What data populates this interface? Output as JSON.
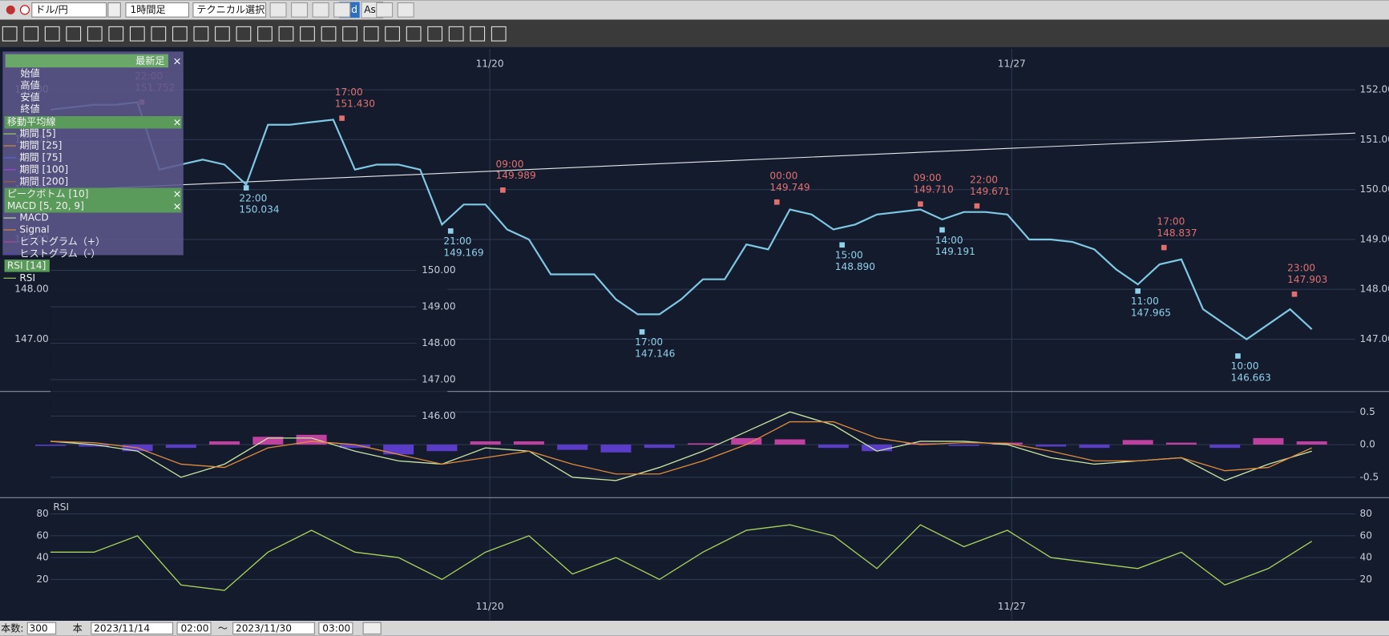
{
  "toolbar": {
    "pair": "ドル/円",
    "timeframe": "1時間足",
    "technical": "テクニカル選択",
    "bid": "Bid",
    "ask": "Ask"
  },
  "legend_panel": {
    "header": "最新足",
    "fields": [
      "始値",
      "高値",
      "安値",
      "終値"
    ],
    "ma_title": "移動平均線",
    "ma_periods": [
      {
        "name": "期間 [5]",
        "color": "#a6d45a"
      },
      {
        "name": "期間 [25]",
        "color": "#e08a3c"
      },
      {
        "name": "期間 [75]",
        "color": "#5a6ae0"
      },
      {
        "name": "期間 [100]",
        "color": "#b040e0"
      },
      {
        "name": "期間 [200]",
        "color": "#a0603a"
      }
    ],
    "peak": "ピークボトム [10]",
    "macd": "MACD [5, 20, 9]",
    "rsi": "RSI [14]"
  },
  "overlay": {
    "ylim": [
      145.8,
      150.37
    ],
    "yticks": [
      {
        "value": 150,
        "label": "150.00"
      },
      {
        "value": 149,
        "label": "149.00"
      },
      {
        "value": 148,
        "label": "148.00"
      },
      {
        "value": 147,
        "label": "147.00"
      },
      {
        "value": 146,
        "label": "146.00"
      }
    ]
  },
  "chart_data": [
    {
      "type": "line",
      "color": "#7ec8e3",
      "xlim": [
        0,
        300
      ],
      "ylim": [
        145.97,
        152.82
      ],
      "mirror_yticks": true,
      "xtick_labels": "top",
      "yticks": [
        {
          "value": 147,
          "label": "147.00"
        },
        {
          "value": 148,
          "label": "148.00"
        },
        {
          "value": 149,
          "label": "149.00"
        },
        {
          "value": 150,
          "label": "150.00"
        },
        {
          "value": 151,
          "label": "151.00"
        },
        {
          "value": 152,
          "label": "152.00"
        }
      ],
      "xticks": [
        {
          "value": 101,
          "label": "11/20"
        },
        {
          "value": 221,
          "label": "11/27"
        }
      ],
      "x": [
        0,
        5,
        10,
        15,
        20,
        25,
        30,
        35,
        40,
        45,
        50,
        55,
        60,
        65,
        70,
        75,
        80,
        85,
        90,
        95,
        100,
        105,
        110,
        115,
        120,
        125,
        130,
        135,
        140,
        145,
        150,
        155,
        160,
        165,
        170,
        175,
        180,
        185,
        190,
        195,
        200,
        205,
        210,
        215,
        220,
        225,
        230,
        235,
        240,
        245,
        250,
        255,
        260,
        265,
        270,
        275,
        280,
        285,
        290
      ],
      "values": [
        151.6,
        151.65,
        151.7,
        151.7,
        151.75,
        150.4,
        150.5,
        150.6,
        150.5,
        150.1,
        151.3,
        151.3,
        151.35,
        151.4,
        150.4,
        150.5,
        150.5,
        150.4,
        149.3,
        149.7,
        149.7,
        149.2,
        149.0,
        148.3,
        148.3,
        148.3,
        147.8,
        147.5,
        147.5,
        147.8,
        148.2,
        148.2,
        148.9,
        148.8,
        149.6,
        149.5,
        149.2,
        149.3,
        149.5,
        149.55,
        149.6,
        149.4,
        149.55,
        149.55,
        149.5,
        149.0,
        149.0,
        148.95,
        148.8,
        148.4,
        148.1,
        148.5,
        148.6,
        147.6,
        147.3,
        147.0,
        147.3,
        147.6,
        147.2
      ],
      "trendline": {
        "color": "#e8e8e8",
        "x": [
          0,
          300
        ],
        "values": [
          149.98,
          151.13
        ]
      },
      "annotations": [
        {
          "x": 21,
          "time": "22:00",
          "value": 151.752,
          "kind": "high"
        },
        {
          "x": 67,
          "time": "17:00",
          "value": 151.43,
          "label": "151.430",
          "kind": "high"
        },
        {
          "x": 45,
          "time": "22:00",
          "value": 150.034,
          "kind": "low"
        },
        {
          "x": 104,
          "time": "09:00",
          "value": 149.989,
          "kind": "high"
        },
        {
          "x": 92,
          "time": "21:00",
          "value": 149.169,
          "kind": "low"
        },
        {
          "x": 167,
          "time": "00:00",
          "value": 149.749,
          "kind": "high"
        },
        {
          "x": 136,
          "time": "17:00",
          "value": 147.146,
          "kind": "low"
        },
        {
          "x": 200,
          "time": "09:00",
          "value": 149.71,
          "label": "149.710",
          "kind": "high"
        },
        {
          "x": 182,
          "time": "15:00",
          "value": 148.89,
          "label": "148.890",
          "kind": "low"
        },
        {
          "x": 213,
          "time": "22:00",
          "value": 149.671,
          "kind": "high"
        },
        {
          "x": 205,
          "time": "14:00",
          "value": 149.191,
          "kind": "low"
        },
        {
          "x": 256,
          "time": "17:00",
          "value": 148.837,
          "kind": "high"
        },
        {
          "x": 250,
          "time": "11:00",
          "value": 147.965,
          "kind": "low"
        },
        {
          "x": 286,
          "time": "23:00",
          "value": 147.903,
          "kind": "high"
        },
        {
          "x": 273,
          "time": "10:00",
          "value": 146.663,
          "kind": "low"
        }
      ]
    },
    {
      "type": "combo",
      "xlim": [
        0,
        300
      ],
      "ylim": [
        -0.8,
        0.8
      ],
      "yticks": [
        0.5,
        {
          "value": 0,
          "label": "0.0"
        },
        -0.5
      ],
      "x": [
        0,
        10,
        20,
        30,
        40,
        50,
        60,
        70,
        80,
        90,
        100,
        110,
        120,
        130,
        140,
        150,
        160,
        170,
        180,
        190,
        200,
        210,
        220,
        230,
        240,
        250,
        260,
        270,
        280,
        290
      ],
      "series": [
        {
          "name": "MACD",
          "kind": "line",
          "color": "#c8e6a0",
          "values": [
            0.05,
            0.0,
            -0.1,
            -0.5,
            -0.3,
            0.1,
            0.1,
            -0.1,
            -0.25,
            -0.3,
            -0.05,
            -0.1,
            -0.5,
            -0.55,
            -0.35,
            -0.1,
            0.2,
            0.5,
            0.3,
            -0.1,
            0.05,
            0.05,
            0.0,
            -0.2,
            -0.3,
            -0.25,
            -0.2,
            -0.55,
            -0.3,
            -0.1
          ]
        },
        {
          "name": "Signal",
          "kind": "line",
          "color": "#e08a3c",
          "values": [
            0.05,
            0.03,
            -0.05,
            -0.3,
            -0.35,
            -0.05,
            0.05,
            0.0,
            -0.15,
            -0.3,
            -0.2,
            -0.1,
            -0.3,
            -0.45,
            -0.45,
            -0.25,
            0.0,
            0.35,
            0.35,
            0.1,
            0.0,
            0.03,
            0.02,
            -0.1,
            -0.25,
            -0.25,
            -0.2,
            -0.4,
            -0.35,
            -0.05
          ]
        },
        {
          "name": "ヒストグラム（+）",
          "kind": "bar",
          "color": "#c040a0",
          "values": [
            null,
            null,
            null,
            null,
            0.05,
            0.12,
            0.15,
            null,
            null,
            null,
            0.05,
            0.05,
            null,
            null,
            null,
            0.02,
            0.1,
            0.08,
            null,
            null,
            0.02,
            null,
            0.03,
            null,
            null,
            0.07,
            0.03,
            null,
            0.1,
            0.05
          ]
        },
        {
          "name": "ヒストグラム（-）",
          "kind": "bar",
          "color": "#5a3cc8",
          "values": [
            -0.02,
            -0.03,
            -0.1,
            -0.05,
            null,
            null,
            null,
            -0.05,
            -0.15,
            -0.1,
            null,
            null,
            -0.08,
            -0.12,
            -0.05,
            null,
            null,
            null,
            -0.05,
            -0.1,
            null,
            -0.02,
            null,
            -0.03,
            -0.05,
            null,
            null,
            -0.05,
            null,
            null
          ]
        }
      ]
    },
    {
      "type": "line",
      "title": "RSI",
      "xlim": [
        0,
        300
      ],
      "ylim": [
        -17,
        94
      ],
      "mirror_yticks": true,
      "xtick_labels": "bottom",
      "yticks": [
        20,
        40,
        60,
        80
      ],
      "xticks": [
        {
          "value": 101,
          "label": "11/20"
        },
        {
          "value": 221,
          "label": "11/27"
        }
      ],
      "x": [
        0,
        10,
        20,
        30,
        40,
        50,
        60,
        70,
        80,
        90,
        100,
        110,
        120,
        130,
        140,
        150,
        160,
        170,
        180,
        190,
        200,
        210,
        220,
        230,
        240,
        250,
        260,
        270,
        280,
        290
      ],
      "series": [
        {
          "name": "RSI",
          "color": "#a6d45a",
          "values": [
            45,
            45,
            60,
            15,
            10,
            45,
            65,
            45,
            40,
            20,
            45,
            60,
            25,
            40,
            20,
            45,
            65,
            70,
            60,
            30,
            70,
            50,
            65,
            40,
            35,
            30,
            45,
            15,
            30,
            55
          ]
        }
      ]
    }
  ],
  "statusbar": {
    "count_label": "本数:",
    "count": "300",
    "unit": "本",
    "from_date": "2023/11/14",
    "from_time": "02:00",
    "tilde": "〜",
    "to_date": "2023/11/30",
    "to_time": "03:00"
  }
}
